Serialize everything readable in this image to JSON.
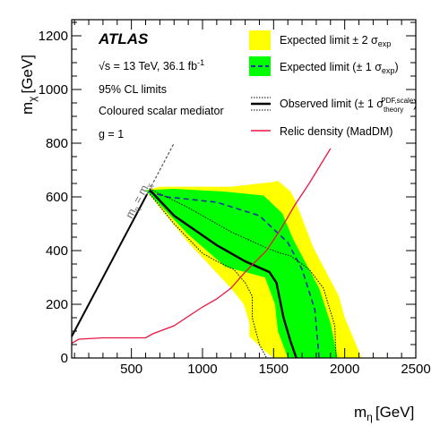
{
  "chart_data": {
    "type": "area",
    "xlabel_main": "m",
    "xlabel_sub": "η",
    "xlabel_unit": "[GeV]",
    "ylabel_main": "m",
    "ylabel_sub": "χ",
    "ylabel_unit": "[GeV]",
    "xlim": [
      80,
      2500
    ],
    "ylim": [
      0,
      1260
    ],
    "x_ticks": [
      500,
      1000,
      1500,
      2000,
      2500
    ],
    "y_ticks": [
      0,
      200,
      400,
      600,
      800,
      1000,
      1200
    ],
    "grid": false,
    "legend_position": "top-right",
    "annotations": {
      "experiment": "ATLAS",
      "energy_lumi": "√s = 13 TeV, 36.1 fb",
      "lumi_exp": "-1",
      "cl": "95% CL limits",
      "model": "Coloured scalar mediator",
      "coupling": "g = 1",
      "diag_label_a": "m",
      "diag_sub_a": "η",
      "diag_eq": " = m",
      "diag_sub_b": "χ"
    },
    "legend": [
      {
        "key": "band2",
        "text": "Expected limit ± 2 σ",
        "sub": "exp",
        "suffix": ""
      },
      {
        "key": "band1",
        "text": "Expected limit (± 1 σ",
        "sub": "exp",
        "suffix": ")"
      },
      {
        "key": "observed",
        "text": "Observed limit (± 1 σ",
        "sub": "theory",
        "sup": "PDF,scale",
        "suffix": ")"
      },
      {
        "key": "relic",
        "text": "Relic density (MadDM)",
        "sub": "",
        "suffix": ""
      }
    ],
    "colors": {
      "band2": "#ffff00",
      "band1": "#00ff00",
      "expected": "#1f2fa8",
      "observed": "#000000",
      "relic": "#e8173f",
      "diag": "#555555"
    },
    "series": [
      {
        "name": "Expected limit ± 2 σexp (upper)",
        "x": [
          600,
          700,
          1200,
          1490,
          1530,
          1620,
          1650,
          1780,
          1960,
          2000,
          2120
        ],
        "y": [
          625,
          638,
          638,
          655,
          660,
          620,
          590,
          410,
          230,
          150,
          0
        ]
      },
      {
        "name": "Expected limit ± 2 σexp (lower)",
        "x": [
          600,
          900,
          1200,
          1290,
          1330,
          1330,
          1370,
          1430,
          1500
        ],
        "y": [
          625,
          430,
          260,
          200,
          130,
          80,
          60,
          30,
          0
        ]
      },
      {
        "name": "Expected limit ± 1 σexp (upper)",
        "x": [
          600,
          800,
          1150,
          1430,
          1560,
          1640,
          1820,
          1900,
          1950
        ],
        "y": [
          625,
          630,
          620,
          605,
          540,
          440,
          260,
          130,
          0
        ]
      },
      {
        "name": "Expected limit ± 1 σexp (lower)",
        "x": [
          600,
          900,
          1160,
          1440,
          1510,
          1530,
          1580,
          1600
        ],
        "y": [
          625,
          460,
          340,
          300,
          200,
          100,
          30,
          0
        ]
      },
      {
        "name": "Expected limit",
        "x": [
          620,
          750,
          1100,
          1400,
          1600,
          1700,
          1790,
          1820
        ],
        "y": [
          620,
          600,
          580,
          530,
          430,
          330,
          180,
          0
        ]
      },
      {
        "name": "Observed limit",
        "x": [
          630,
          800,
          1100,
          1300,
          1470,
          1520,
          1570,
          1620,
          1660
        ],
        "y": [
          625,
          530,
          420,
          360,
          320,
          280,
          150,
          60,
          0
        ]
      },
      {
        "name": "Observed limit +1σtheory",
        "x": [
          630,
          900,
          1200,
          1450,
          1550,
          1620,
          1750,
          1850,
          1930,
          1940
        ],
        "y": [
          630,
          560,
          470,
          410,
          390,
          380,
          330,
          260,
          120,
          0
        ]
      },
      {
        "name": "Observed limit −1σtheory",
        "x": [
          630,
          800,
          1000,
          1100,
          1220,
          1300,
          1350,
          1350,
          1400,
          1450
        ],
        "y": [
          610,
          500,
          390,
          360,
          330,
          280,
          230,
          150,
          50,
          0
        ]
      },
      {
        "name": "Relic density (MadDM)",
        "x": [
          80,
          130,
          300,
          600,
          650,
          800,
          1000,
          1100,
          1200,
          1300,
          1450,
          1550,
          1650,
          1750,
          1900
        ],
        "y": [
          55,
          70,
          75,
          75,
          90,
          120,
          190,
          220,
          260,
          320,
          400,
          480,
          570,
          650,
          780
        ]
      },
      {
        "name": "m_eta = m_chi boundary",
        "x": [
          80,
          610
        ],
        "y": [
          80,
          610
        ]
      },
      {
        "name": "m_eta = m_chi extension",
        "x": [
          610,
          800
        ],
        "y": [
          610,
          800
        ]
      }
    ]
  }
}
